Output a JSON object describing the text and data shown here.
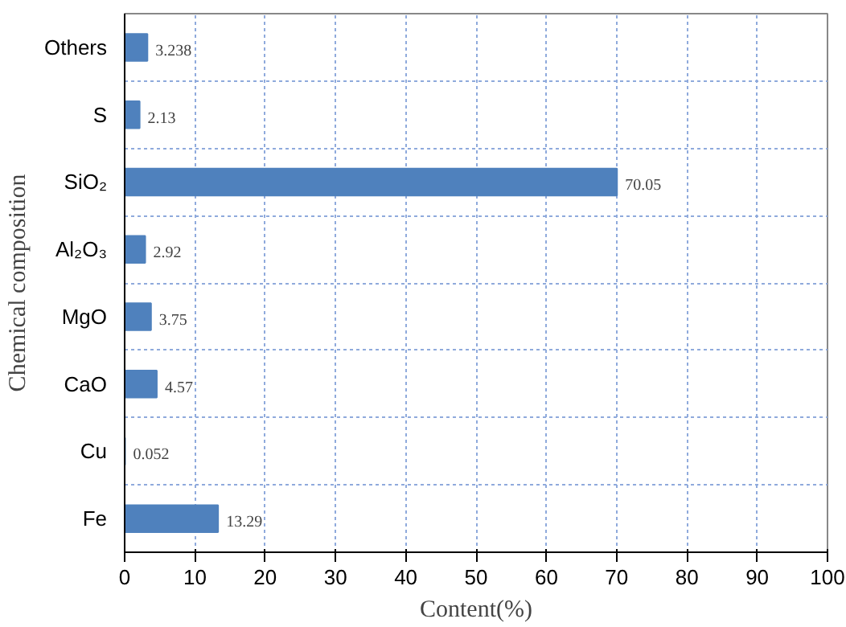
{
  "chart_data": {
    "type": "bar",
    "orientation": "horizontal",
    "xlabel": "Content(%)",
    "ylabel": "Chemical composition",
    "categories": [
      "Others",
      "S",
      "SiO₂",
      "Al₂O₃",
      "MgO",
      "CaO",
      "Cu",
      "Fe"
    ],
    "values": [
      3.238,
      2.13,
      70.05,
      2.92,
      3.75,
      4.57,
      0.052,
      13.29
    ],
    "color": "#4f81bd",
    "data_labels": true,
    "xlim": [
      0,
      100
    ],
    "xticks": [
      0,
      10,
      20,
      30,
      40,
      50,
      60,
      70,
      80,
      90,
      100
    ],
    "grid": true
  }
}
